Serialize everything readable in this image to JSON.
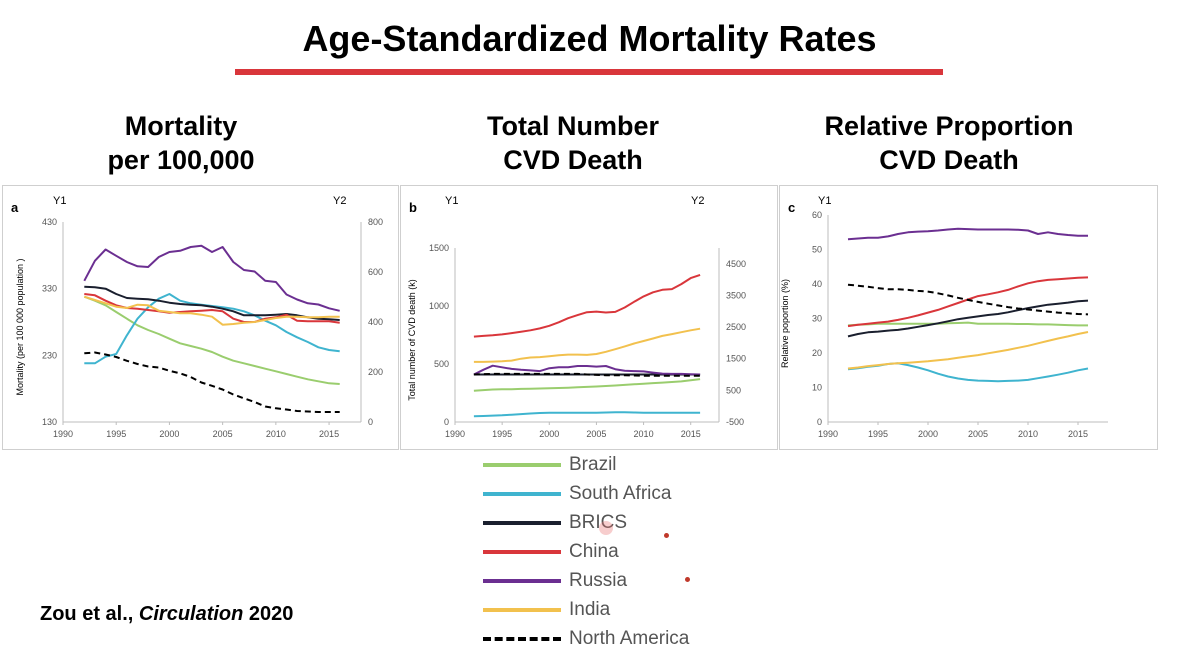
{
  "slide": {
    "title": "Age-Standardized Mortality Rates",
    "columns": [
      {
        "line1": "Mortality",
        "line2": "per 100,000"
      },
      {
        "line1": "Total Number",
        "line2": "CVD Death"
      },
      {
        "line1": "Relative Proportion",
        "line2": "CVD Death"
      }
    ],
    "citation": {
      "authors": "Zou et al., ",
      "journal": "Circulation",
      "year": " 2020"
    }
  },
  "colors": {
    "Brazil": "#9acd6e",
    "South Africa": "#3fb4cf",
    "BRICS": "#1a1f2e",
    "China": "#d9363b",
    "Russia": "#6b2f91",
    "India": "#f2c14e",
    "North America": "#000000"
  },
  "legend": [
    {
      "name": "Brazil",
      "dashed": false
    },
    {
      "name": "South Africa",
      "dashed": false
    },
    {
      "name": "BRICS",
      "dashed": false
    },
    {
      "name": "China",
      "dashed": false
    },
    {
      "name": "Russia",
      "dashed": false
    },
    {
      "name": "India",
      "dashed": false
    },
    {
      "name": "North America",
      "dashed": true
    }
  ],
  "chart_data": [
    {
      "type": "line",
      "panel_label": "a",
      "y1_title": "Y1",
      "y2_title": "Y2",
      "ylabel": "Mortality (per 100 000 population )",
      "x_ticks": [
        "1990",
        "1995",
        "2000",
        "2005",
        "2010",
        "2015"
      ],
      "xlim": [
        1990,
        2018
      ],
      "y1_ticks": [
        "130",
        "230",
        "330",
        "430"
      ],
      "y1lim": [
        130,
        430
      ],
      "y2_ticks": [
        "0",
        "200",
        "400",
        "600",
        "800"
      ],
      "y2lim": [
        0,
        800
      ],
      "x": [
        1992,
        1993,
        1994,
        1995,
        1996,
        1997,
        1998,
        1999,
        2000,
        2001,
        2002,
        2003,
        2004,
        2005,
        2006,
        2007,
        2008,
        2009,
        2010,
        2011,
        2012,
        2013,
        2014,
        2015,
        2016
      ],
      "series": [
        {
          "name": "Brazil",
          "axis": "y1",
          "values": [
            318,
            312,
            305,
            295,
            285,
            275,
            268,
            262,
            255,
            248,
            244,
            240,
            235,
            228,
            222,
            218,
            214,
            210,
            206,
            202,
            198,
            194,
            191,
            188,
            187
          ]
        },
        {
          "name": "South Africa",
          "axis": "y1",
          "values": [
            218,
            218,
            228,
            232,
            260,
            285,
            302,
            315,
            322,
            312,
            308,
            306,
            304,
            302,
            300,
            296,
            290,
            282,
            275,
            265,
            257,
            250,
            242,
            238,
            236
          ]
        },
        {
          "name": "BRICS",
          "axis": "y1",
          "values": [
            333,
            332,
            330,
            322,
            316,
            315,
            314,
            312,
            309,
            307,
            306,
            305,
            303,
            300,
            296,
            290,
            290,
            290,
            291,
            292,
            290,
            287,
            285,
            284,
            283
          ]
        },
        {
          "name": "China",
          "axis": "y1",
          "values": [
            322,
            320,
            312,
            305,
            301,
            300,
            298,
            296,
            294,
            295,
            296,
            297,
            298,
            296,
            285,
            280,
            280,
            285,
            287,
            291,
            282,
            281,
            281,
            281,
            279
          ]
        },
        {
          "name": "Russia",
          "axis": "y2",
          "values": [
            565,
            645,
            690,
            665,
            640,
            623,
            620,
            660,
            680,
            685,
            700,
            705,
            680,
            700,
            640,
            608,
            602,
            565,
            560,
            510,
            490,
            475,
            470,
            455,
            445
          ]
        },
        {
          "name": "India",
          "axis": "y1",
          "values": [
            318,
            313,
            308,
            303,
            301,
            306,
            305,
            297,
            295,
            293,
            293,
            291,
            288,
            276,
            277,
            279,
            280,
            283,
            286,
            288,
            288,
            287,
            287,
            288,
            288
          ]
        },
        {
          "name": "North America",
          "axis": "y2",
          "dashed": true,
          "values": [
            275,
            278,
            270,
            260,
            245,
            232,
            222,
            218,
            205,
            195,
            180,
            158,
            145,
            130,
            110,
            95,
            80,
            62,
            55,
            50,
            44,
            42,
            40,
            40,
            40
          ]
        }
      ]
    },
    {
      "type": "line",
      "panel_label": "b",
      "y1_title": "Y1",
      "y2_title": "Y2",
      "ylabel": "Total number of CVD death (k)",
      "x_ticks": [
        "1990",
        "1995",
        "2000",
        "2005",
        "2010",
        "2015"
      ],
      "xlim": [
        1990,
        2018
      ],
      "y1_ticks": [
        "0",
        "500",
        "1000",
        "1500"
      ],
      "y1lim": [
        0,
        1500
      ],
      "y2_ticks": [
        "-500",
        "500",
        "1500",
        "2500",
        "3500",
        "4500"
      ],
      "y2lim": [
        -500,
        5000
      ],
      "x": [
        1992,
        1993,
        1994,
        1995,
        1996,
        1997,
        1998,
        1999,
        2000,
        2001,
        2002,
        2003,
        2004,
        2005,
        2006,
        2007,
        2008,
        2009,
        2010,
        2011,
        2012,
        2013,
        2014,
        2015,
        2016
      ],
      "series": [
        {
          "name": "Brazil",
          "axis": "y1",
          "values": [
            270,
            275,
            280,
            282,
            283,
            285,
            287,
            289,
            291,
            293,
            296,
            300,
            303,
            306,
            310,
            315,
            320,
            325,
            330,
            335,
            340,
            345,
            350,
            360,
            370
          ]
        },
        {
          "name": "South Africa",
          "axis": "y1",
          "values": [
            50,
            52,
            55,
            58,
            63,
            68,
            73,
            78,
            80,
            80,
            80,
            80,
            80,
            80,
            82,
            84,
            84,
            82,
            80,
            80,
            79,
            79,
            79,
            79,
            79
          ]
        },
        {
          "name": "BRICS",
          "axis": "y2",
          "values": [
            1000,
            1000,
            1000,
            1000,
            1000,
            1000,
            1000,
            1000,
            1000,
            1000,
            1000,
            1000,
            1000,
            1000,
            1000,
            1000,
            1000,
            1000,
            1000,
            1000,
            1000,
            1000,
            1000,
            1000,
            1000
          ]
        },
        {
          "name": "China",
          "axis": "y2",
          "values": [
            2200,
            2220,
            2240,
            2270,
            2310,
            2350,
            2400,
            2460,
            2540,
            2650,
            2780,
            2880,
            2970,
            2990,
            2960,
            2980,
            3120,
            3300,
            3470,
            3600,
            3680,
            3700,
            3860,
            4050,
            4150
          ]
        },
        {
          "name": "Russia",
          "axis": "y2",
          "values": [
            1000,
            1150,
            1280,
            1230,
            1180,
            1150,
            1130,
            1110,
            1200,
            1230,
            1230,
            1270,
            1270,
            1250,
            1270,
            1170,
            1120,
            1110,
            1100,
            1060,
            1030,
            1020,
            1020,
            1010,
            1000
          ]
        },
        {
          "name": "India",
          "axis": "y2",
          "values": [
            1400,
            1400,
            1410,
            1420,
            1440,
            1500,
            1540,
            1550,
            1580,
            1610,
            1630,
            1630,
            1620,
            1650,
            1720,
            1800,
            1890,
            1980,
            2060,
            2140,
            2220,
            2280,
            2340,
            2400,
            2450
          ]
        },
        {
          "name": "North America",
          "axis": "y2",
          "dashed": true,
          "values": [
            1000,
            1010,
            1020,
            1020,
            1020,
            1020,
            1020,
            1020,
            1020,
            1020,
            1020,
            1020,
            1000,
            990,
            980,
            980,
            980,
            970,
            960,
            960,
            960,
            960,
            960,
            960,
            960
          ]
        }
      ]
    },
    {
      "type": "line",
      "panel_label": "c",
      "y1_title": "Y1",
      "ylabel": "Relative poportion (%)",
      "x_ticks": [
        "1990",
        "1995",
        "2000",
        "2005",
        "2010",
        "2015"
      ],
      "xlim": [
        1990,
        2018
      ],
      "y1_ticks": [
        "0",
        "10",
        "20",
        "30",
        "40",
        "50",
        "60"
      ],
      "y1lim": [
        0,
        60
      ],
      "x": [
        1992,
        1993,
        1994,
        1995,
        1996,
        1997,
        1998,
        1999,
        2000,
        2001,
        2002,
        2003,
        2004,
        2005,
        2006,
        2007,
        2008,
        2009,
        2010,
        2011,
        2012,
        2013,
        2014,
        2015,
        2016
      ],
      "series": [
        {
          "name": "Brazil",
          "axis": "y1",
          "values": [
            28.0,
            28.2,
            28.3,
            28.5,
            28.5,
            28.5,
            28.5,
            28.5,
            28.5,
            28.5,
            28.6,
            28.7,
            28.8,
            28.5,
            28.5,
            28.5,
            28.5,
            28.4,
            28.4,
            28.3,
            28.3,
            28.2,
            28.1,
            28.0,
            28.0
          ]
        },
        {
          "name": "South Africa",
          "axis": "y1",
          "values": [
            15.3,
            15.6,
            16.0,
            16.3,
            16.8,
            17.0,
            16.5,
            15.8,
            15.0,
            14.0,
            13.2,
            12.6,
            12.2,
            12.0,
            11.9,
            11.8,
            11.9,
            12.0,
            12.2,
            12.7,
            13.2,
            13.7,
            14.3,
            15.0,
            15.5
          ]
        },
        {
          "name": "BRICS",
          "axis": "y1",
          "values": [
            24.8,
            25.5,
            26.0,
            26.2,
            26.5,
            26.7,
            27.1,
            27.6,
            28.1,
            28.6,
            29.2,
            29.8,
            30.2,
            30.6,
            31.0,
            31.3,
            31.8,
            32.4,
            33.0,
            33.5,
            34.0,
            34.3,
            34.6,
            35.0,
            35.2
          ]
        },
        {
          "name": "China",
          "axis": "y1",
          "values": [
            27.8,
            28.2,
            28.5,
            28.8,
            29.1,
            29.6,
            30.2,
            30.9,
            31.7,
            32.5,
            33.5,
            34.5,
            35.5,
            36.5,
            37.0,
            37.6,
            38.3,
            39.3,
            40.2,
            40.8,
            41.2,
            41.4,
            41.6,
            41.8,
            41.9
          ]
        },
        {
          "name": "Russia",
          "axis": "y1",
          "values": [
            53.0,
            53.2,
            53.4,
            53.4,
            53.8,
            54.5,
            55.0,
            55.2,
            55.3,
            55.5,
            55.8,
            56.0,
            55.9,
            55.8,
            55.8,
            55.8,
            55.8,
            55.7,
            55.5,
            54.5,
            55.0,
            54.5,
            54.2,
            54.0,
            54.0
          ]
        },
        {
          "name": "India",
          "axis": "y1",
          "values": [
            15.5,
            15.8,
            16.2,
            16.5,
            16.8,
            17.0,
            17.2,
            17.4,
            17.6,
            17.9,
            18.2,
            18.6,
            19.0,
            19.4,
            19.9,
            20.4,
            20.9,
            21.5,
            22.1,
            22.8,
            23.5,
            24.2,
            24.8,
            25.5,
            26.1
          ]
        },
        {
          "name": "North America",
          "axis": "y1",
          "dashed": true,
          "values": [
            39.8,
            39.5,
            39.2,
            38.8,
            38.5,
            38.5,
            38.3,
            38.0,
            37.8,
            37.3,
            36.7,
            36.0,
            35.4,
            34.8,
            34.3,
            33.8,
            33.3,
            32.9,
            32.6,
            32.3,
            32.0,
            31.7,
            31.5,
            31.3,
            31.2
          ]
        }
      ]
    }
  ]
}
